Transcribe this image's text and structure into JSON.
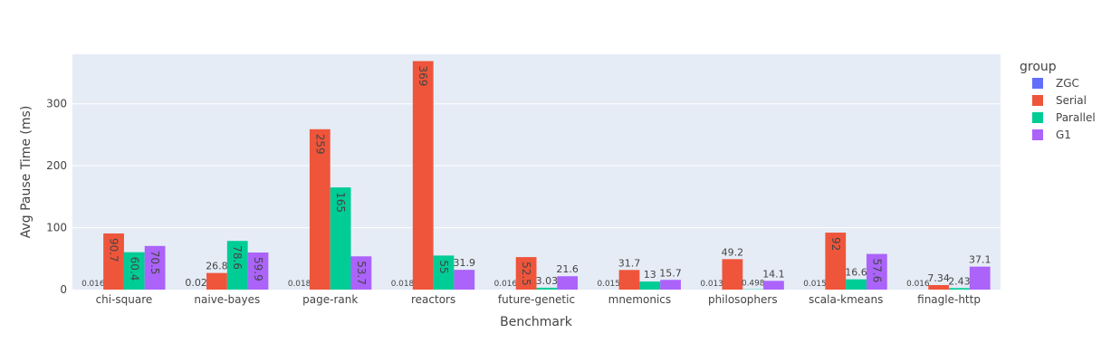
{
  "chart_data": {
    "type": "bar",
    "xlabel": "Benchmark",
    "ylabel": "Avg Pause Time (ms)",
    "ylim": [
      0,
      380
    ],
    "yticks": [
      0,
      100,
      200,
      300
    ],
    "grid": true,
    "legend_title": "group",
    "legend_position": "right",
    "categories": [
      "chi-square",
      "naive-bayes",
      "page-rank",
      "reactors",
      "future-genetic",
      "mnemonics",
      "philosophers",
      "scala-kmeans",
      "finagle-http"
    ],
    "series": [
      {
        "name": "ZGC",
        "color": "#636efa",
        "values": [
          0.016,
          0.02,
          0.018,
          0.018,
          0.016,
          0.015,
          0.013,
          0.015,
          0.016
        ],
        "labels": [
          "0.016",
          "0.02",
          "0.018",
          "0.018",
          "0.016",
          "0.015",
          "0.013",
          "0.015",
          "0.016"
        ]
      },
      {
        "name": "Serial",
        "color": "#ef553b",
        "values": [
          90.7,
          26.8,
          259,
          369,
          52.5,
          31.7,
          49.2,
          92,
          7.34
        ],
        "labels": [
          "90.7",
          "26.8",
          "259",
          "369",
          "52.5",
          "31.7",
          "49.2",
          "92",
          "7.34"
        ]
      },
      {
        "name": "Parallel",
        "color": "#00cc96",
        "values": [
          60.4,
          78.6,
          165,
          55,
          3.03,
          13,
          0.498,
          16.6,
          2.43
        ],
        "labels": [
          "60.4",
          "78.6",
          "165",
          "55",
          "3.03",
          "13",
          "0.498",
          "16.6",
          "2.43"
        ]
      },
      {
        "name": "G1",
        "color": "#ab63fa",
        "values": [
          70.5,
          59.9,
          53.7,
          31.9,
          21.6,
          15.7,
          14.1,
          57.6,
          37.1
        ],
        "labels": [
          "70.5",
          "59.9",
          "53.7",
          "31.9",
          "21.6",
          "15.7",
          "14.1",
          "57.6",
          "37.1"
        ]
      }
    ]
  }
}
